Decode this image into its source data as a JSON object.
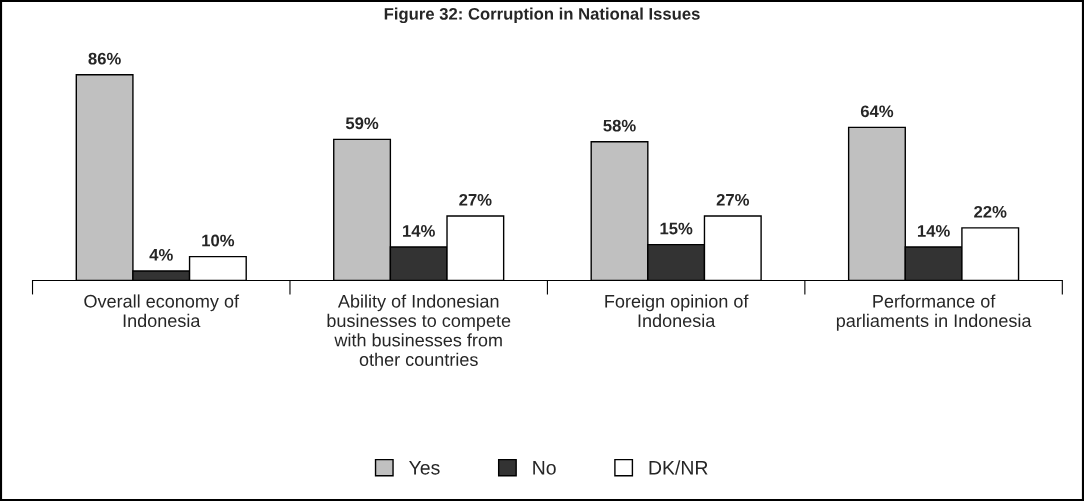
{
  "chart_data": {
    "type": "bar",
    "title": "Figure 32: Corruption in National Issues",
    "categories": [
      "Overall economy of Indonesia",
      "Ability of Indonesian businesses to compete with businesses from other countries",
      "Foreign opinion of Indonesia",
      "Performance of parliaments in Indonesia"
    ],
    "series": [
      {
        "name": "Yes",
        "color": "#c0c0c0",
        "values": [
          86,
          59,
          58,
          64
        ],
        "value_labels": [
          "86%",
          "59%",
          "58%",
          "64%"
        ]
      },
      {
        "name": "No",
        "color": "#333333",
        "values": [
          4,
          14,
          15,
          14
        ],
        "value_labels": [
          "4%",
          "14%",
          "15%",
          "14%"
        ]
      },
      {
        "name": "DK/NR",
        "color": "#ffffff",
        "values": [
          10,
          27,
          27,
          22
        ],
        "value_labels": [
          "10%",
          "27%",
          "27%",
          "22%"
        ]
      }
    ],
    "legend": "bottom",
    "grid": false
  }
}
